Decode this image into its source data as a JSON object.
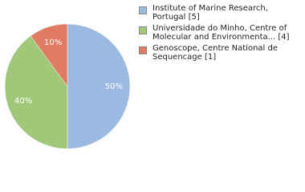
{
  "chart_data": {
    "type": "pie",
    "categories": [
      "Institute of Marine Research, Portugal [5]",
      "Universidade do Minho, Centre of Molecular and Environmenta... [4]",
      "Genoscope, Centre National de Sequencage [1]"
    ],
    "values": [
      50,
      40,
      10
    ],
    "value_labels": [
      "50%",
      "40%",
      "10%"
    ],
    "colors": [
      "#9cbae1",
      "#a0c878",
      "#e07b62"
    ],
    "legend": "right"
  }
}
